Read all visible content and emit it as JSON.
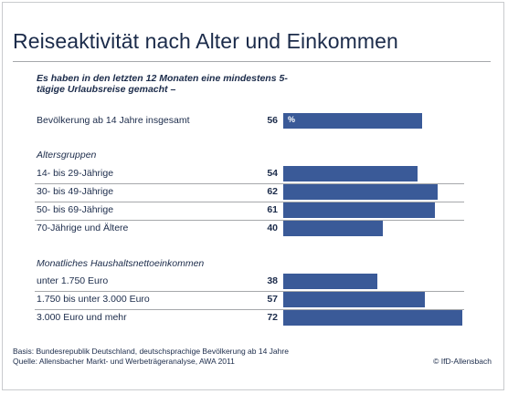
{
  "chart_data": {
    "type": "bar",
    "title": "Reiseaktivität nach Alter und Einkommen",
    "intro": "Es haben in den letzten 12 Monaten eine mindestens 5-tägige Urlaubsreise gemacht –",
    "unit_label": "%",
    "xlim": [
      0,
      72
    ],
    "rows": [
      {
        "label": "Bevölkerung ab 14 Jahre insgesamt",
        "value": 56
      },
      {
        "label": "14- bis 29-Jährige",
        "value": 54
      },
      {
        "label": "30- bis 49-Jährige",
        "value": 62
      },
      {
        "label": "50- bis 69-Jährige",
        "value": 61
      },
      {
        "label": "70-Jährige und Ältere",
        "value": 40
      },
      {
        "label": "unter 1.750 Euro",
        "value": 38
      },
      {
        "label": "1.750 bis unter 3.000 Euro",
        "value": 57
      },
      {
        "label": "3.000 Euro und mehr",
        "value": 72
      }
    ],
    "sections": [
      "Altersgruppen",
      "Monatliches Haushaltsnettoeinkommen"
    ],
    "bar_color": "#3a5a98"
  },
  "footer": {
    "basis": "Basis: Bundesrepublik Deutschland, deutschsprachige Bevölkerung ab 14 Jahre",
    "source": "Quelle: Allensbacher Markt- und Werbeträgeranalyse, AWA 2011",
    "copyright": "© IfD-Allensbach"
  }
}
